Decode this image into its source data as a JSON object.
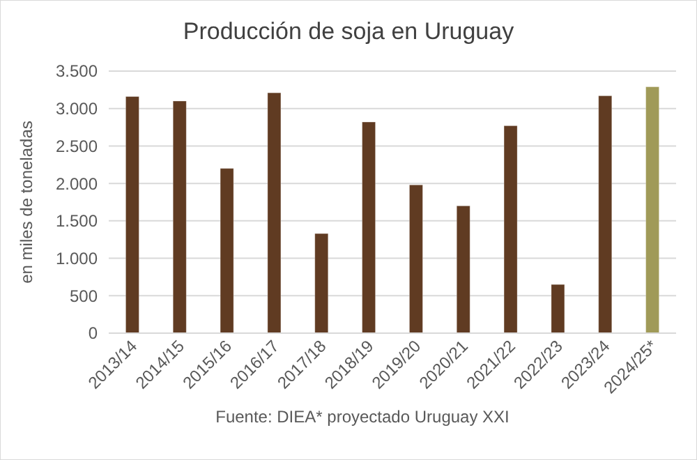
{
  "chart_data": {
    "type": "bar",
    "title": "Producción de soja en Uruguay",
    "ylabel": "en miles de toneladas",
    "categories": [
      "2013/14",
      "2014/15",
      "2015/16",
      "2016/17",
      "2017/18",
      "2018/19",
      "2019/20",
      "2020/21",
      "2021/22",
      "2022/23",
      "2023/24",
      "2024/25*"
    ],
    "values": [
      3160,
      3100,
      2200,
      3210,
      1330,
      2820,
      1980,
      1700,
      2770,
      650,
      3170,
      3290
    ],
    "colors": [
      "#603b22",
      "#603b22",
      "#603b22",
      "#603b22",
      "#603b22",
      "#603b22",
      "#603b22",
      "#603b22",
      "#603b22",
      "#603b22",
      "#603b22",
      "#a09a58"
    ],
    "ylim": [
      0,
      3500
    ],
    "yticks": [
      {
        "value": 0,
        "label": "0"
      },
      {
        "value": 500,
        "label": "500"
      },
      {
        "value": 1000,
        "label": "1.000"
      },
      {
        "value": 1500,
        "label": "1.500"
      },
      {
        "value": 2000,
        "label": "2.000"
      },
      {
        "value": 2500,
        "label": "2.500"
      },
      {
        "value": 3000,
        "label": "3.000"
      },
      {
        "value": 3500,
        "label": "3.500"
      }
    ],
    "grid": "y",
    "annotations": [
      "Fuente: DIEA* proyectado Uruguay XXI"
    ]
  }
}
